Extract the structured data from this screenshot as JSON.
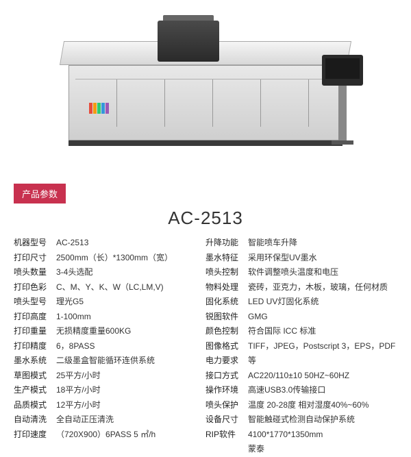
{
  "badge": "产品参数",
  "title": "AC-2513",
  "printer": {
    "logo_colors": [
      "#e74c3c",
      "#f39c12",
      "#2ecc71",
      "#3498db",
      "#9b59b6"
    ],
    "bed_color": "#e0e0e0",
    "body_color": "#d8d8d8",
    "gantry_color": "#3a3a3a"
  },
  "left_labels": [
    "机器型号",
    "打印尺寸",
    "喷头数量",
    "打印色彩",
    "喷头型号",
    "打印高度",
    "打印重量",
    "打印精度",
    "墨水系统",
    "草图模式",
    "生产模式",
    "品质模式",
    "自动清洗",
    "打印速度"
  ],
  "left_values": [
    "AC-2513",
    "2500mm（长）*1300mm（宽）",
    "3-4头选配",
    "C、M、Y、K、W（LC,LM,V)",
    "理光G5",
    "1-100mm",
    "无损精度重量600KG",
    "6，8PASS",
    "二级墨盒智能循环连供系统",
    "25平方/小时",
    "18平方/小时",
    "12平方/小时",
    "全自动正压清洗",
    "（720X900）6PASS 5 ㎡/h"
  ],
  "right_labels": [
    "升降功能",
    "墨水特征",
    "喷头控制",
    "物料处理",
    "固化系统",
    "锐图软件",
    "颜色控制",
    "图像格式",
    "电力要求",
    "接口方式",
    "操作环境",
    "喷头保护",
    "设备尺寸",
    "RIP软件"
  ],
  "right_values": [
    "智能喷车升降",
    "采用环保型UV墨水",
    "软件调整喷头温度和电压",
    "瓷砖，亚克力，木板，玻璃，任何材质",
    "LED UV灯固化系统",
    "GMG",
    "符合国际 ICC 标准",
    "TIFF，JPEG，Postscript 3，EPS，PDF 等",
    "AC220/110±10  50HZ~60HZ",
    "高速USB3.0传输接口",
    "温度 20-28度    相对湿度40%~60%",
    "智能触碰式检测自动保护系统",
    "4100*1770*1350mm",
    "蒙泰"
  ]
}
